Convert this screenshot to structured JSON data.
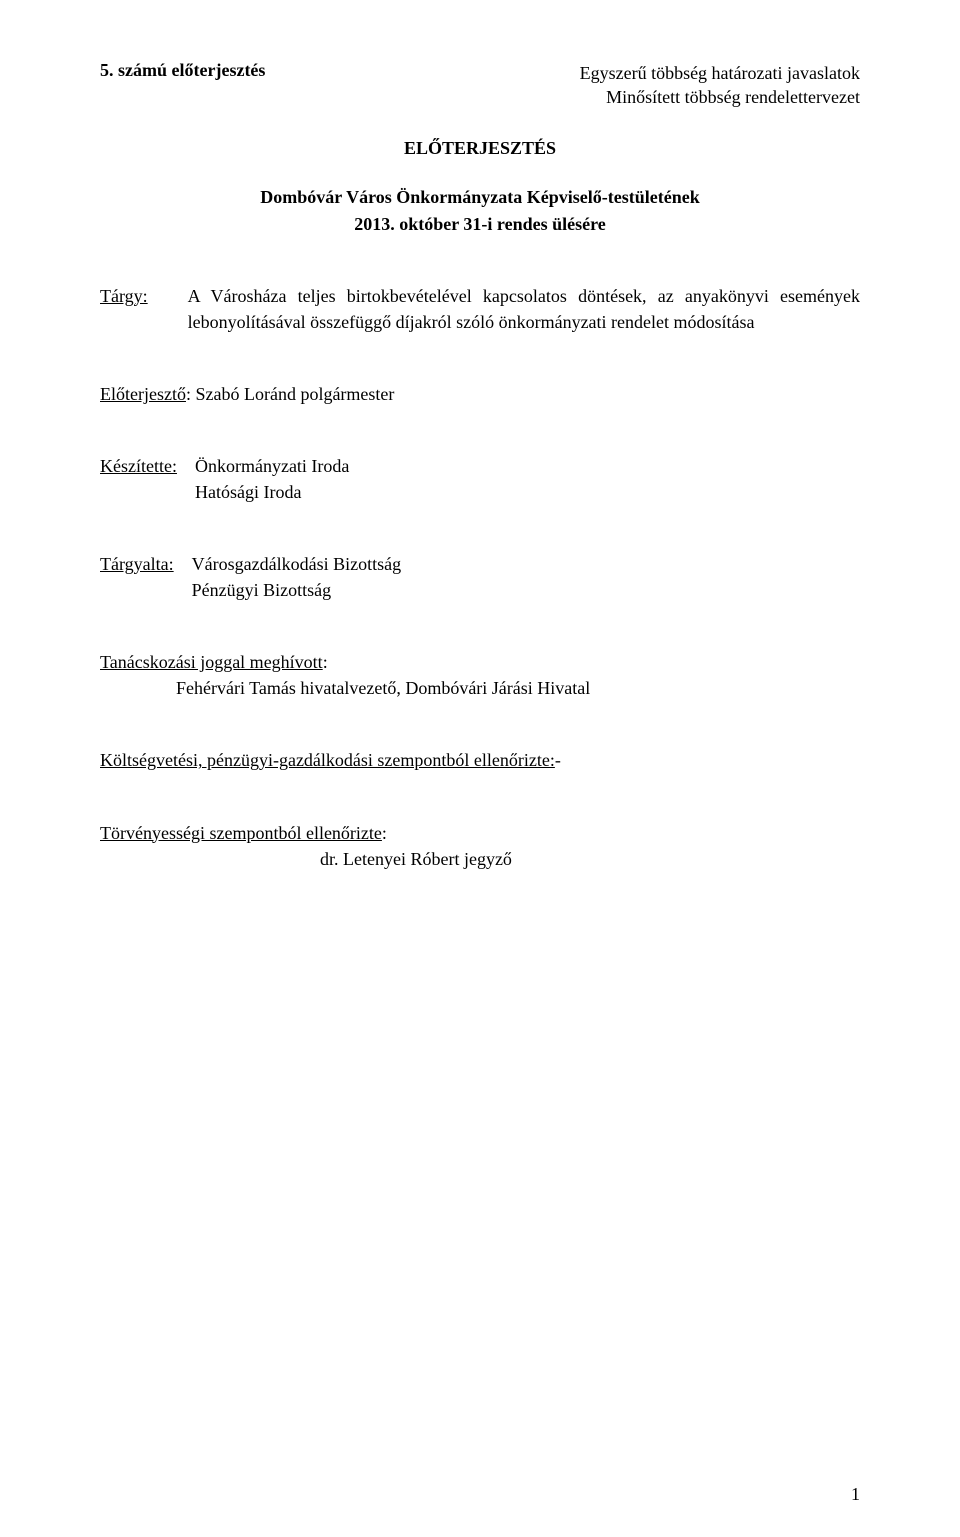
{
  "doc_number": "5. számú előterjesztés",
  "header_right_line1": "Egyszerű többség határozati javaslatok",
  "header_right_line2": "Minősített többség rendelettervezet",
  "title": "ELŐTERJESZTÉS",
  "council_line": "Dombóvár Város Önkormányzata Képviselő-testületének",
  "date_line": "2013. október 31-i rendes ülésére",
  "targy_label": "Tárgy:",
  "targy_text": "A Városháza teljes birtokbevételével kapcsolatos döntések, az anyakönyvi események lebonyolításával összefüggő díjakról szóló önkormányzati rendelet módosítása",
  "eloterj_label": "Előterjesztő",
  "eloterj_value": ": Szabó Loránd polgármester",
  "keszitette_label": "Készítette:",
  "keszitette_line1": "Önkormányzati Iroda",
  "keszitette_line2": "Hatósági Iroda",
  "targyalta_label": "Tárgyalta:",
  "targyalta_line1": "Városgazdálkodási Bizottság",
  "targyalta_line2": "Pénzügyi Bizottság",
  "invited_label": "Tanácskozási joggal meghívott",
  "invited_colon": ":",
  "invited_value": "Fehérvári Tamás hivatalvezető, Dombóvári Járási Hivatal",
  "cost_label": "Költségvetési, pénzügyi-gazdálkodási szempontból ellenőrizte:",
  "cost_value": "-",
  "legal_label": "Törvényességi szempontból ellenőrizte",
  "legal_colon": ":",
  "legal_value": "dr. Letenyei Róbert jegyző",
  "page_number": "1"
}
